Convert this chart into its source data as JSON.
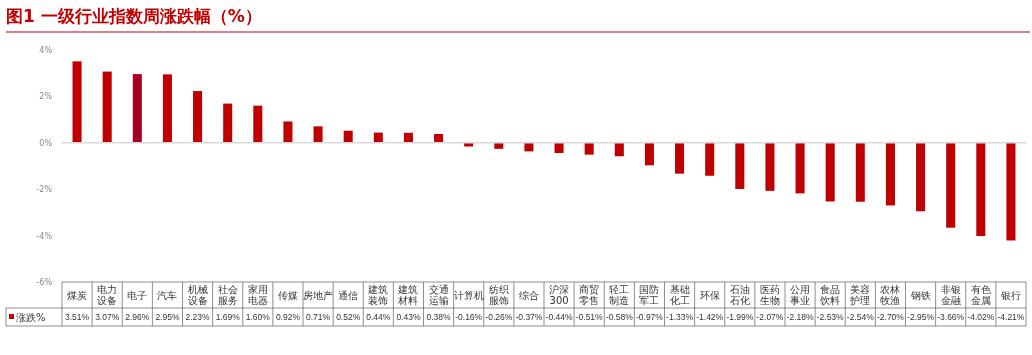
{
  "chart_data": {
    "type": "bar",
    "title": "图1  一级行业指数周涨跌幅（%）",
    "categories": [
      "煤炭",
      "电力设备",
      "电子",
      "汽车",
      "机械设备",
      "社会服务",
      "家用电器",
      "传媒",
      "房地产",
      "通信",
      "建筑装饰",
      "建筑材料",
      "交通运输",
      "计算机",
      "纺织服饰",
      "综合",
      "沪深300",
      "商贸零售",
      "轻工制造",
      "国防军工",
      "基础化工",
      "环保",
      "石油石化",
      "医药生物",
      "公用事业",
      "食品饮料",
      "美容护理",
      "农林牧渔",
      "钢铁",
      "非银金融",
      "有色金属",
      "银行"
    ],
    "series": [
      {
        "name": "涨跌%",
        "color": "#c00000",
        "colors": [
          "#c00000",
          "#c00000",
          "#a50021",
          "#c00000",
          "#c00000",
          "#c00000",
          "#c00000",
          "#c00000",
          "#c00000",
          "#c00000",
          "#c00000",
          "#c00000",
          "#c00000",
          "#c00000",
          "#c00000",
          "#c00000",
          "#c00000",
          "#c00000",
          "#c00000",
          "#c00000",
          "#c00000",
          "#c00000",
          "#c00000",
          "#c00000",
          "#c00000",
          "#c00000",
          "#c00000",
          "#c00000",
          "#c00000",
          "#c00000",
          "#c00000",
          "#c00000"
        ],
        "values": [
          3.51,
          3.07,
          2.96,
          2.95,
          2.23,
          1.69,
          1.6,
          0.92,
          0.71,
          0.52,
          0.44,
          0.43,
          0.38,
          -0.16,
          -0.26,
          -0.37,
          -0.44,
          -0.51,
          -0.58,
          -0.97,
          -1.33,
          -1.42,
          -1.99,
          -2.07,
          -2.18,
          -2.53,
          -2.54,
          -2.7,
          -2.95,
          -3.66,
          -4.02,
          -4.21
        ],
        "value_labels": [
          "3.51%",
          "3.07%",
          "2.96%",
          "2.95%",
          "2.23%",
          "1.69%",
          "1.60%",
          "0.92%",
          "0.71%",
          "0.52%",
          "0.44%",
          "0.43%",
          "0.38%",
          "-0.16%",
          "-0.26%",
          "-0.37%",
          "-0.44%",
          "-0.51%",
          "-0.58%",
          "-0.97%",
          "-1.33%",
          "-1.42%",
          "-1.99%",
          "-2.07%",
          "-2.18%",
          "-2.53%",
          "-2.54%",
          "-2.70%",
          "-2.95%",
          "-3.66%",
          "-4.02%",
          "-4.21%"
        ]
      }
    ],
    "ylim": [
      -6,
      4
    ],
    "yticks": [
      {
        "value": -6,
        "label": "-6%"
      },
      {
        "value": -4,
        "label": "-4%"
      },
      {
        "value": -2,
        "label": "-2%"
      },
      {
        "value": 0,
        "label": "0%"
      },
      {
        "value": 2,
        "label": "2%"
      },
      {
        "value": 4,
        "label": "4%"
      }
    ],
    "legend": "bottom"
  }
}
